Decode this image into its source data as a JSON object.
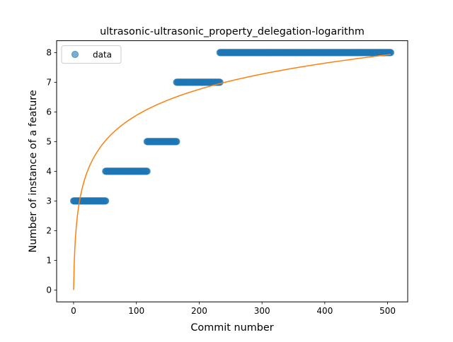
{
  "chart_data": {
    "type": "scatter",
    "title": "ultrasonic-ultrasonic_property_delegation-logarithm",
    "xlabel": "Commit number",
    "ylabel": "Number of instance of a feature",
    "xlim": [
      -27,
      532
    ],
    "ylim": [
      -0.4,
      8.4
    ],
    "xticks": [
      0,
      100,
      200,
      300,
      400,
      500
    ],
    "yticks": [
      0,
      1,
      2,
      3,
      4,
      5,
      6,
      7,
      8
    ],
    "grid": false,
    "legend_position": "top-left",
    "legend": [
      {
        "label": "data",
        "marker": "circle",
        "color": "#1f77b4"
      }
    ],
    "series": [
      {
        "name": "data",
        "kind": "scatter",
        "color": "#1f77b4",
        "segments": [
          {
            "x_start": 0,
            "x_end": 51,
            "y": 3
          },
          {
            "x_start": 51,
            "x_end": 117,
            "y": 4
          },
          {
            "x_start": 117,
            "x_end": 164,
            "y": 5
          },
          {
            "x_start": 164,
            "x_end": 233,
            "y": 7
          },
          {
            "x_start": 233,
            "x_end": 505,
            "y": 8
          }
        ]
      },
      {
        "kind": "line",
        "color": "#ff7f0e",
        "function": "a + b*ln(x+1)",
        "a": 0,
        "b": 1.275,
        "x_range": [
          0,
          505
        ]
      }
    ]
  }
}
